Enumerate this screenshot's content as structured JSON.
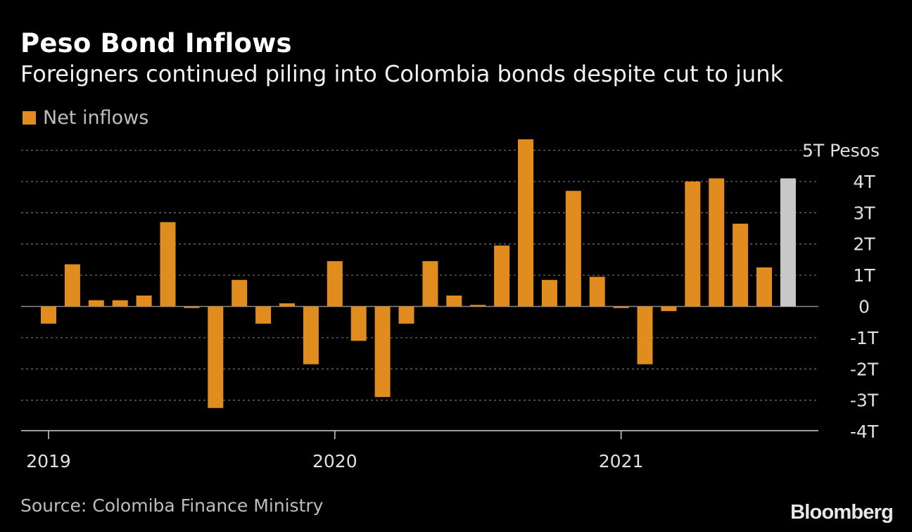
{
  "chart_data": {
    "type": "bar",
    "title": "Peso Bond Inflows",
    "subtitle": "Foreigners continued piling into Colombia bonds despite cut to junk",
    "legend": [
      {
        "label": "Net inflows",
        "color": "#e08c1e"
      }
    ],
    "legend_position": "top-left",
    "y_unit": "Pesos",
    "ylim": [
      -4,
      5
    ],
    "y_ticks": [
      {
        "value": 5,
        "label": "5T"
      },
      {
        "value": 4,
        "label": "4T"
      },
      {
        "value": 3,
        "label": "3T"
      },
      {
        "value": 2,
        "label": "2T"
      },
      {
        "value": 1,
        "label": "1T"
      },
      {
        "value": 0,
        "label": "0"
      },
      {
        "value": -1,
        "label": "-1T"
      },
      {
        "value": -2,
        "label": "-2T"
      },
      {
        "value": -3,
        "label": "-3T"
      },
      {
        "value": -4,
        "label": "-4T"
      }
    ],
    "x_ticks": [
      "2019",
      "2020",
      "2021"
    ],
    "x_tick_positions": [
      0,
      12,
      24
    ],
    "grid": true,
    "series": [
      {
        "name": "Net inflows",
        "color": "#e08c1e",
        "highlight_color": "#c8c8c8",
        "highlight_index": 31,
        "values": [
          -0.55,
          1.35,
          0.2,
          0.2,
          0.35,
          2.7,
          -0.05,
          -3.25,
          0.85,
          -0.55,
          0.1,
          -1.85,
          1.45,
          -1.1,
          -2.9,
          -0.55,
          1.45,
          0.35,
          0.05,
          1.95,
          5.35,
          0.85,
          3.7,
          0.95,
          -0.05,
          -1.85,
          -0.15,
          4.0,
          4.1,
          2.65,
          1.25,
          4.1
        ]
      }
    ]
  },
  "footer": {
    "source": "Source: Colomiba Finance Ministry",
    "brand": "Bloomberg"
  }
}
